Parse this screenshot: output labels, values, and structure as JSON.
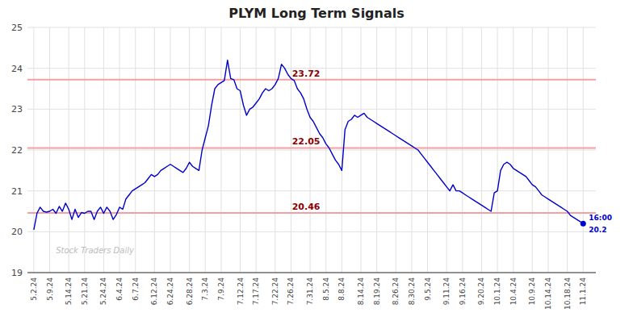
{
  "chart_data": {
    "type": "line",
    "title": "PLYM Long Term Signals",
    "categories": [
      "5.2.24",
      null,
      null,
      null,
      null,
      "5.9.24",
      null,
      null,
      null,
      null,
      null,
      "5.14.24",
      null,
      null,
      null,
      null,
      "5.21.24",
      null,
      null,
      null,
      null,
      null,
      "5.24.24",
      null,
      null,
      null,
      null,
      "6.4.24",
      null,
      null,
      null,
      null,
      "6.7.24",
      null,
      null,
      null,
      null,
      null,
      "6.12.24",
      null,
      null,
      null,
      null,
      "6.24.24",
      null,
      null,
      null,
      null,
      null,
      "6.28.24",
      null,
      null,
      null,
      null,
      "7.3.24",
      null,
      null,
      null,
      null,
      "7.9.24",
      null,
      null,
      null,
      null,
      null,
      "7.12.24",
      null,
      null,
      null,
      null,
      "7.17.24",
      null,
      null,
      null,
      null,
      null,
      "7.22.24",
      null,
      null,
      null,
      null,
      "7.26.24",
      null,
      null,
      null,
      null,
      null,
      "7.31.24",
      null,
      null,
      null,
      null,
      "8.5.24",
      null,
      null,
      null,
      null,
      "8.8.24",
      null,
      null,
      null,
      null,
      null,
      "8.14.24",
      null,
      null,
      null,
      null,
      "8.19.24",
      null,
      null,
      null,
      null,
      null,
      "8.26.24",
      null,
      null,
      null,
      null,
      "8.30.24",
      null,
      null,
      null,
      null,
      "9.5.24",
      null,
      null,
      null,
      null,
      null,
      "9.11.24",
      null,
      null,
      null,
      null,
      "9.16.24",
      null,
      null,
      null,
      null,
      null,
      "9.20.24",
      null,
      null,
      null,
      null,
      "10.1.24",
      null,
      null,
      null,
      null,
      "10.4.24",
      null,
      null,
      null,
      null,
      null,
      "10.9.24",
      null,
      null,
      null,
      null,
      "10.14.24",
      null,
      null,
      null,
      null,
      null,
      "10.18.24",
      null,
      null,
      null,
      null,
      "11.1.24"
    ],
    "values": [
      20.05,
      20.45,
      20.6,
      20.5,
      20.48,
      20.5,
      20.55,
      20.45,
      20.62,
      20.5,
      20.7,
      20.55,
      20.3,
      20.55,
      20.35,
      20.47,
      20.45,
      20.5,
      20.5,
      20.3,
      20.5,
      20.6,
      20.45,
      20.6,
      20.5,
      20.3,
      20.42,
      20.6,
      20.55,
      20.8,
      20.9,
      21.0,
      21.05,
      21.1,
      21.15,
      21.2,
      21.3,
      21.4,
      21.35,
      21.4,
      21.5,
      21.55,
      21.6,
      21.65,
      21.6,
      21.55,
      21.5,
      21.45,
      21.55,
      21.7,
      21.6,
      21.55,
      21.5,
      22.0,
      22.3,
      22.6,
      23.1,
      23.5,
      23.6,
      23.65,
      23.7,
      24.2,
      23.75,
      23.72,
      23.5,
      23.45,
      23.1,
      22.85,
      23.0,
      23.05,
      23.15,
      23.25,
      23.4,
      23.5,
      23.45,
      23.5,
      23.6,
      23.75,
      24.1,
      24.0,
      23.85,
      23.75,
      23.7,
      23.5,
      23.4,
      23.25,
      23.0,
      22.8,
      22.7,
      22.55,
      22.4,
      22.3,
      22.15,
      22.05,
      21.9,
      21.75,
      21.65,
      21.5,
      22.5,
      22.7,
      22.75,
      22.85,
      22.8,
      22.85,
      22.9,
      22.8,
      22.75,
      22.7,
      22.65,
      22.6,
      22.55,
      22.5,
      22.45,
      22.4,
      22.35,
      22.3,
      22.25,
      22.2,
      22.15,
      22.1,
      22.05,
      22.0,
      21.9,
      21.8,
      21.7,
      21.6,
      21.5,
      21.4,
      21.3,
      21.2,
      21.1,
      21.0,
      21.15,
      21.0,
      21.0,
      20.95,
      20.9,
      20.85,
      20.8,
      20.75,
      20.7,
      20.65,
      20.6,
      20.55,
      20.5,
      20.95,
      21.0,
      21.5,
      21.65,
      21.7,
      21.65,
      21.55,
      21.5,
      21.45,
      21.4,
      21.35,
      21.25,
      21.15,
      21.1,
      21.0,
      20.9,
      20.85,
      20.8,
      20.75,
      20.7,
      20.65,
      20.6,
      20.55,
      20.5,
      20.4,
      20.35,
      20.3,
      20.25,
      20.2
    ],
    "color": "#0000cc",
    "ylim": [
      19,
      25
    ],
    "yticks": [
      19,
      20,
      21,
      22,
      23,
      24,
      25
    ],
    "grid": true,
    "hlines": [
      {
        "value": 23.72,
        "label": "23.72",
        "color": "#f5a0a0"
      },
      {
        "value": 22.05,
        "label": "22.05",
        "color": "#f5a0a0"
      },
      {
        "value": 20.46,
        "label": "20.46",
        "color": "#f5a0a0"
      }
    ],
    "end_point": {
      "value": 20.2,
      "label": "20.2",
      "time": "16:00"
    },
    "watermark": "Stock Traders Daily"
  }
}
